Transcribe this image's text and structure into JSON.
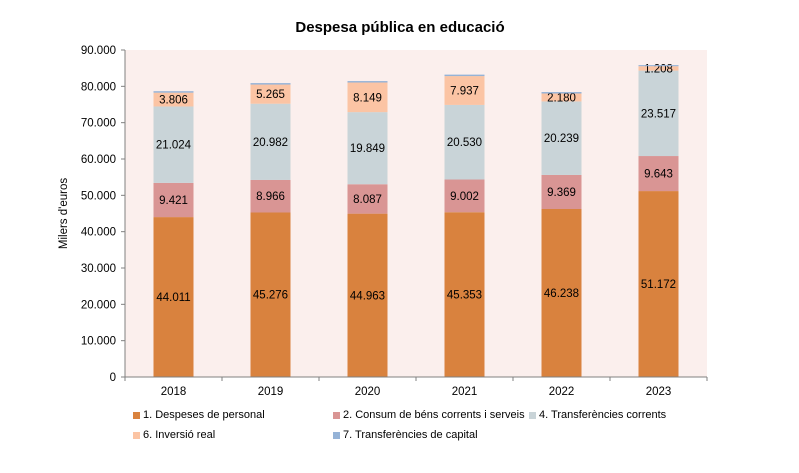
{
  "chart_data": {
    "type": "bar",
    "stacked": true,
    "title": "Despesa pública en educació",
    "xlabel": "",
    "ylabel": "Milers d'euros",
    "ylim": [
      0,
      90000
    ],
    "yticks": [
      0,
      10000,
      20000,
      30000,
      40000,
      50000,
      60000,
      70000,
      80000,
      90000
    ],
    "ytick_labels": [
      "0",
      "10.000",
      "20.000",
      "30.000",
      "40.000",
      "50.000",
      "60.000",
      "70.000",
      "80.000",
      "90.000"
    ],
    "categories": [
      "2018",
      "2019",
      "2020",
      "2021",
      "2022",
      "2023"
    ],
    "grid": false,
    "legend_position": "bottom",
    "series": [
      {
        "name": "1. Despeses de personal",
        "color": "#D9823E",
        "values": [
          44011,
          45276,
          44963,
          45353,
          46238,
          51172
        ],
        "labels": [
          "44.011",
          "45.276",
          "44.963",
          "45.353",
          "46.238",
          "51.172"
        ]
      },
      {
        "name": "2. Consum de béns corrents i serveis",
        "color": "#D99594",
        "values": [
          9421,
          8966,
          8087,
          9002,
          9369,
          9643
        ],
        "labels": [
          "9.421",
          "8.966",
          "8.087",
          "9.002",
          "9.369",
          "9.643"
        ]
      },
      {
        "name": "4. Transferències corrents",
        "color": "#C9D4D8",
        "values": [
          21024,
          20982,
          19849,
          20530,
          20239,
          23517
        ],
        "labels": [
          "21.024",
          "20.982",
          "19.849",
          "20.530",
          "20.239",
          "23.517"
        ]
      },
      {
        "name": "6. Inversió real",
        "color": "#FBC4A4",
        "values": [
          3806,
          5265,
          8149,
          7937,
          2180,
          1208
        ],
        "labels": [
          "3.806",
          "5.265",
          "8.149",
          "7.937",
          "2.180",
          "1.208"
        ]
      },
      {
        "name": "7. Transferències de capital",
        "color": "#95B3D7",
        "values": [
          400,
          400,
          400,
          400,
          400,
          300
        ],
        "labels": []
      }
    ],
    "plot_background": "#FBEFED"
  }
}
